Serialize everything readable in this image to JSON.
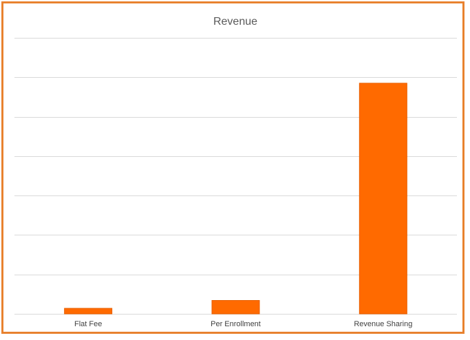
{
  "chart_data": {
    "type": "bar",
    "title": "Revenue",
    "categories": [
      "Flat Fee",
      "Per Enrollment",
      "Revenue Sharing"
    ],
    "values": [
      1.4,
      3.4,
      58.5
    ],
    "xlabel": "",
    "ylabel": "",
    "ylim": [
      0,
      70
    ],
    "gridline_step": 10,
    "grid": true,
    "y_tick_labels_shown": false,
    "legend": "none"
  },
  "colors": {
    "bar": "#ff6a00",
    "bar_outline": "#e85f00",
    "border": "#e8822f",
    "gridline": "#d9d9d9"
  }
}
